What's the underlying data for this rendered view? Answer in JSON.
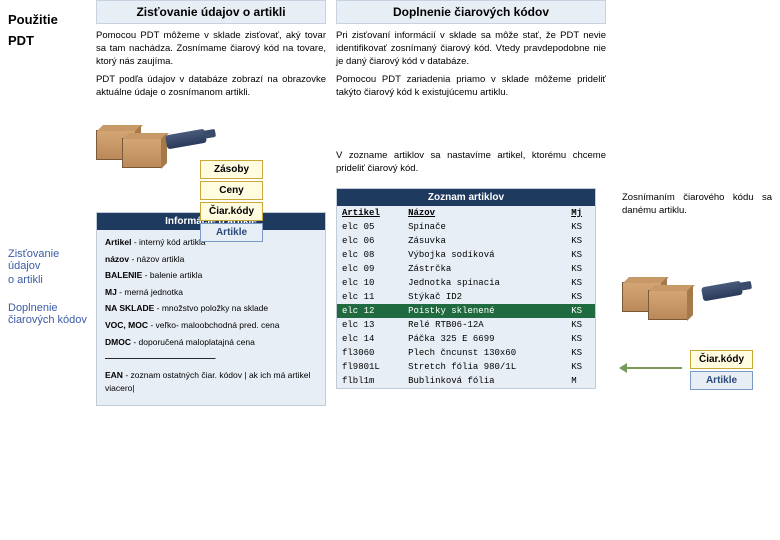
{
  "sidebar": {
    "title": "Použitie",
    "subtitle": "PDT",
    "links": [
      "Zisťovanie údajov",
      "o artikli",
      "Doplnenie čiarových kódov"
    ]
  },
  "left": {
    "header": "Zisťovanie údajov o artikli",
    "p1": "Pomocou PDT môžeme v sklade zisťovať, aký tovar sa tam nachádza. Zosnímame čiarový kód na tovare, ktorý nás zaujíma.",
    "p2": "PDT podľa údajov v databáze zobrazí na obrazovke aktuálne údaje o zosnímanom artikli.",
    "tags": [
      "Zásoby",
      "Ceny",
      "Čiar.kódy",
      "Artikle"
    ],
    "info_header": "Informácie o artikle",
    "info_rows": [
      {
        "lab": "Artikel",
        "val": "- interný kód artikla"
      },
      {
        "lab": "názov",
        "val": "- názov artikla"
      },
      {
        "lab": "BALENIE",
        "val": "- balenie artikla"
      },
      {
        "lab": "MJ",
        "val": "- merná jednotka"
      },
      {
        "lab": "NA SKLADE",
        "val": "- množstvo položky na sklade"
      },
      {
        "lab": "VOC, MOC",
        "val": "- veľko- maloobchodná pred. cena"
      },
      {
        "lab": "DMOC",
        "val": "- doporučená maloplatajná cena"
      },
      {
        "lab": "—————————————",
        "val": ""
      },
      {
        "lab": "EAN",
        "val": "- zoznam ostatných čiar. kódov | ak ich má artikel viacero|"
      }
    ]
  },
  "mid": {
    "header": "Doplnenie čiarových kódov",
    "p1": "Pri zisťovaní informácií v sklade sa môže stať, že PDT nevie identifikovať zosnímaný čiarový kód. Vtedy pravdepodobne nie je daný čiarový kód v databáze.",
    "p2": "Pomocou PDT zariadenia priamo v sklade môžeme prideliť takýto čiarový kód k existujúcemu artiklu.",
    "p3": "V zozname artiklov sa nastavíme artikel, ktorému chceme prideliť čiarový kód.",
    "table_header": "Zoznam artiklov",
    "cols": [
      "Artikel",
      "Názov",
      "Mj"
    ],
    "rows": [
      [
        "elc 05",
        "Spínače",
        "KS"
      ],
      [
        "elc 06",
        "Zásuvka",
        "KS"
      ],
      [
        "elc 08",
        "Výbojka sodíková",
        "KS"
      ],
      [
        "elc 09",
        "Zástrčka",
        "KS"
      ],
      [
        "elc 10",
        "Jednotka spínacia",
        "KS"
      ],
      [
        "elc 11",
        "Stýkač ID2",
        "KS"
      ],
      [
        "elc 12",
        "Poistky sklenené",
        "KS"
      ],
      [
        "elc 13",
        "Relé RTB06-12A",
        "KS"
      ],
      [
        "elc 14",
        "Páčka 325 E 6699",
        "KS"
      ],
      [
        "fl3060",
        "Plech čncunst 130x60",
        "KS"
      ],
      [
        "fl9801L",
        "Stretch fólia 980/1L",
        "KS"
      ],
      [
        "flbl1m",
        "Bublinková fólia",
        "M"
      ]
    ],
    "hi_row": 6
  },
  "right": {
    "p1": "Zosnímaním čiarového kódu sa tento pridelí danému artiklu.",
    "tags": [
      "Čiar.kódy",
      "Artikle"
    ]
  },
  "colors": {
    "header_bg": "#e8eef6",
    "header_border": "#c8d2e0",
    "tag_bg": "#fffce0",
    "tag_border": "#caa838",
    "tag_blue_bg": "#e8eef6",
    "tag_blue_border": "#7a9ac5",
    "panel_header": "#1f3a5f",
    "hi_row": "#1f6a3f"
  }
}
